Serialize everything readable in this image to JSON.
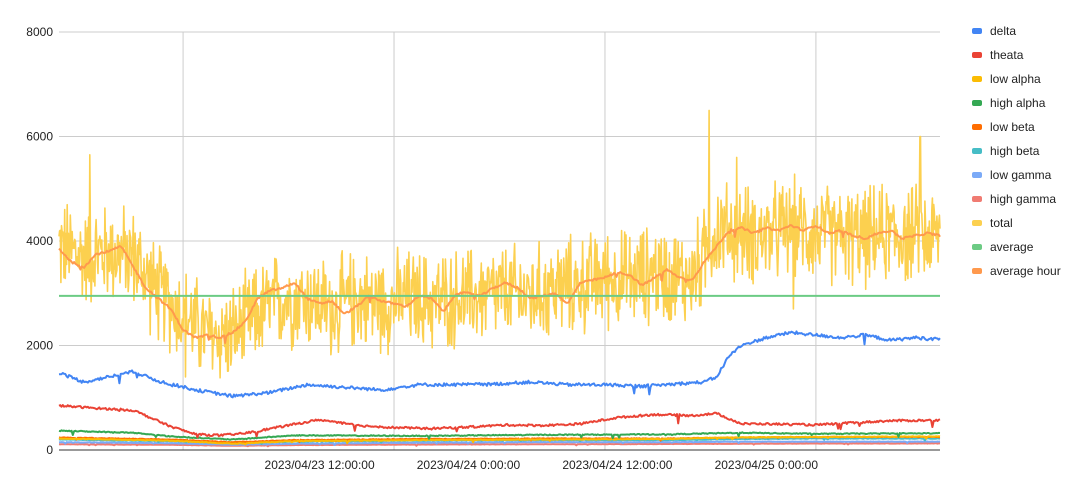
{
  "chart_data": {
    "type": "line",
    "title": "",
    "xlabel": "",
    "ylabel": "",
    "grid": true,
    "legend_position": "right",
    "ylim": [
      0,
      8000
    ],
    "y_ticks": [
      "0",
      "2000",
      "4000",
      "6000",
      "8000"
    ],
    "y_tick_values": [
      0,
      2000,
      4000,
      6000,
      8000
    ],
    "x_range_hours": [
      -9.0,
      62.0
    ],
    "x_axis_origin": "2023/04/23 0:00:00",
    "x_ticks": [
      {
        "label": "2023/04/23 12:00:00",
        "hour": 12
      },
      {
        "label": "2023/04/24 0:00:00",
        "hour": 24
      },
      {
        "label": "2023/04/24 12:00:00",
        "hour": 36
      },
      {
        "label": "2023/04/25 0:00:00",
        "hour": 48
      }
    ],
    "x_vertical_gridlines_hours": [
      1,
      18,
      35,
      52
    ],
    "series": [
      {
        "name": "delta",
        "color": "#4285f4",
        "kind": "trend",
        "points": [
          [
            -9,
            1480
          ],
          [
            -7,
            1300
          ],
          [
            -5,
            1400
          ],
          [
            -3,
            1500
          ],
          [
            -1,
            1320
          ],
          [
            2,
            1150
          ],
          [
            5,
            1030
          ],
          [
            8,
            1100
          ],
          [
            11,
            1250
          ],
          [
            14,
            1200
          ],
          [
            17,
            1150
          ],
          [
            20,
            1250
          ],
          [
            23,
            1250
          ],
          [
            26,
            1260
          ],
          [
            29,
            1300
          ],
          [
            32,
            1250
          ],
          [
            35,
            1250
          ],
          [
            38,
            1220
          ],
          [
            41,
            1270
          ],
          [
            43,
            1300
          ],
          [
            44,
            1400
          ],
          [
            45,
            1800
          ],
          [
            46,
            2000
          ],
          [
            48,
            2150
          ],
          [
            50,
            2250
          ],
          [
            52,
            2200
          ],
          [
            54,
            2150
          ],
          [
            56,
            2200
          ],
          [
            58,
            2100
          ],
          [
            60,
            2150
          ],
          [
            62,
            2120
          ]
        ],
        "noise": 60
      },
      {
        "name": "theata",
        "color": "#ea4335",
        "kind": "trend",
        "points": [
          [
            -9,
            850
          ],
          [
            -6,
            800
          ],
          [
            -3,
            760
          ],
          [
            0,
            450
          ],
          [
            2,
            300
          ],
          [
            4,
            280
          ],
          [
            6,
            320
          ],
          [
            9,
            450
          ],
          [
            12,
            580
          ],
          [
            15,
            470
          ],
          [
            18,
            430
          ],
          [
            21,
            410
          ],
          [
            24,
            440
          ],
          [
            27,
            480
          ],
          [
            30,
            470
          ],
          [
            33,
            500
          ],
          [
            36,
            620
          ],
          [
            39,
            680
          ],
          [
            42,
            660
          ],
          [
            44,
            700
          ],
          [
            46,
            500
          ],
          [
            48,
            500
          ],
          [
            52,
            480
          ],
          [
            55,
            520
          ],
          [
            58,
            560
          ],
          [
            62,
            570
          ]
        ],
        "noise": 40
      },
      {
        "name": "low alpha",
        "color": "#fbbc04",
        "kind": "trend",
        "points": [
          [
            -9,
            220
          ],
          [
            0,
            180
          ],
          [
            5,
            120
          ],
          [
            10,
            170
          ],
          [
            20,
            190
          ],
          [
            30,
            200
          ],
          [
            40,
            210
          ],
          [
            45,
            240
          ],
          [
            52,
            250
          ],
          [
            62,
            260
          ]
        ],
        "noise": 12
      },
      {
        "name": "high alpha",
        "color": "#34a853",
        "kind": "trend",
        "points": [
          [
            -9,
            370
          ],
          [
            -3,
            330
          ],
          [
            0,
            260
          ],
          [
            5,
            200
          ],
          [
            10,
            280
          ],
          [
            20,
            270
          ],
          [
            30,
            290
          ],
          [
            40,
            300
          ],
          [
            46,
            330
          ],
          [
            52,
            310
          ],
          [
            62,
            320
          ]
        ],
        "noise": 18
      },
      {
        "name": "low beta",
        "color": "#ff6d01",
        "kind": "trend",
        "points": [
          [
            -9,
            240
          ],
          [
            0,
            200
          ],
          [
            5,
            150
          ],
          [
            10,
            190
          ],
          [
            20,
            210
          ],
          [
            30,
            220
          ],
          [
            40,
            220
          ],
          [
            46,
            240
          ],
          [
            52,
            250
          ],
          [
            62,
            250
          ]
        ],
        "noise": 12
      },
      {
        "name": "high beta",
        "color": "#46bdc6",
        "kind": "trend",
        "points": [
          [
            -9,
            200
          ],
          [
            0,
            170
          ],
          [
            5,
            130
          ],
          [
            10,
            160
          ],
          [
            20,
            180
          ],
          [
            30,
            190
          ],
          [
            40,
            190
          ],
          [
            46,
            210
          ],
          [
            52,
            220
          ],
          [
            62,
            220
          ]
        ],
        "noise": 10
      },
      {
        "name": "low gamma",
        "color": "#7baaf7",
        "kind": "trend",
        "points": [
          [
            -9,
            150
          ],
          [
            0,
            130
          ],
          [
            5,
            100
          ],
          [
            10,
            120
          ],
          [
            20,
            140
          ],
          [
            30,
            150
          ],
          [
            40,
            150
          ],
          [
            46,
            160
          ],
          [
            52,
            160
          ],
          [
            62,
            160
          ]
        ],
        "noise": 8
      },
      {
        "name": "high gamma",
        "color": "#f07b72",
        "kind": "trend",
        "points": [
          [
            -9,
            110
          ],
          [
            0,
            100
          ],
          [
            5,
            80
          ],
          [
            10,
            95
          ],
          [
            20,
            105
          ],
          [
            30,
            110
          ],
          [
            40,
            115
          ],
          [
            46,
            120
          ],
          [
            52,
            125
          ],
          [
            62,
            125
          ]
        ],
        "noise": 6
      },
      {
        "name": "total",
        "color": "#fcd04f",
        "kind": "noisy",
        "points": [
          [
            -9,
            3900
          ],
          [
            -7,
            3700
          ],
          [
            -5,
            3800
          ],
          [
            -3,
            3700
          ],
          [
            -1,
            3000
          ],
          [
            1,
            2600
          ],
          [
            3,
            2200
          ],
          [
            5,
            2200
          ],
          [
            7,
            2600
          ],
          [
            9,
            2900
          ],
          [
            11,
            2900
          ],
          [
            13,
            2700
          ],
          [
            15,
            2900
          ],
          [
            17,
            2800
          ],
          [
            19,
            2900
          ],
          [
            21,
            2850
          ],
          [
            23,
            2900
          ],
          [
            25,
            2950
          ],
          [
            27,
            3000
          ],
          [
            29,
            2950
          ],
          [
            31,
            3100
          ],
          [
            33,
            3150
          ],
          [
            35,
            3300
          ],
          [
            37,
            3250
          ],
          [
            39,
            3400
          ],
          [
            41,
            3300
          ],
          [
            42,
            3300
          ],
          [
            43,
            3700
          ],
          [
            44,
            4200
          ],
          [
            46,
            4150
          ],
          [
            48,
            4100
          ],
          [
            50,
            4250
          ],
          [
            52,
            4150
          ],
          [
            54,
            4100
          ],
          [
            56,
            4050
          ],
          [
            58,
            4150
          ],
          [
            60,
            4100
          ],
          [
            62,
            4100
          ]
        ],
        "noise": 750,
        "peaks": [
          [
            43.4,
            6500
          ],
          [
            45.6,
            5600
          ],
          [
            60.4,
            6000
          ],
          [
            -6.5,
            5650
          ],
          [
            1.2,
            1400
          ],
          [
            50.2,
            2700
          ]
        ]
      },
      {
        "name": "average",
        "color": "#6ccb84",
        "kind": "flat",
        "value": 2950
      },
      {
        "name": "average hour",
        "color": "#ff994d",
        "kind": "trend",
        "points": [
          [
            -9,
            3850
          ],
          [
            -8,
            3600
          ],
          [
            -7,
            3500
          ],
          [
            -6,
            3750
          ],
          [
            -5,
            3800
          ],
          [
            -4,
            3900
          ],
          [
            -3,
            3500
          ],
          [
            -2,
            3100
          ],
          [
            -1,
            2900
          ],
          [
            0,
            2700
          ],
          [
            1,
            2300
          ],
          [
            2,
            2150
          ],
          [
            3,
            2200
          ],
          [
            4,
            2150
          ],
          [
            5,
            2250
          ],
          [
            6,
            2450
          ],
          [
            7,
            2900
          ],
          [
            8,
            3050
          ],
          [
            9,
            3100
          ],
          [
            10,
            3200
          ],
          [
            11,
            2900
          ],
          [
            12,
            2800
          ],
          [
            13,
            2850
          ],
          [
            14,
            2600
          ],
          [
            15,
            2750
          ],
          [
            16,
            2950
          ],
          [
            17,
            2850
          ],
          [
            18,
            2800
          ],
          [
            19,
            2750
          ],
          [
            20,
            2950
          ],
          [
            21,
            2900
          ],
          [
            22,
            2650
          ],
          [
            23,
            3000
          ],
          [
            24,
            3000
          ],
          [
            25,
            2950
          ],
          [
            26,
            3100
          ],
          [
            27,
            3200
          ],
          [
            28,
            3100
          ],
          [
            29,
            2900
          ],
          [
            30,
            2950
          ],
          [
            31,
            3000
          ],
          [
            32,
            2800
          ],
          [
            33,
            3200
          ],
          [
            34,
            3250
          ],
          [
            35,
            3300
          ],
          [
            36,
            3400
          ],
          [
            37,
            3350
          ],
          [
            38,
            3150
          ],
          [
            39,
            3300
          ],
          [
            40,
            3450
          ],
          [
            41,
            3300
          ],
          [
            42,
            3250
          ],
          [
            43,
            3600
          ],
          [
            44,
            3900
          ],
          [
            45,
            4200
          ],
          [
            46,
            4250
          ],
          [
            47,
            4150
          ],
          [
            48,
            4250
          ],
          [
            49,
            4200
          ],
          [
            50,
            4300
          ],
          [
            51,
            4200
          ],
          [
            52,
            4300
          ],
          [
            53,
            4150
          ],
          [
            54,
            4200
          ],
          [
            55,
            4100
          ],
          [
            56,
            4050
          ],
          [
            57,
            4150
          ],
          [
            58,
            4200
          ],
          [
            59,
            4050
          ],
          [
            60,
            4100
          ],
          [
            61,
            4150
          ],
          [
            62,
            4100
          ]
        ],
        "noise": 40
      }
    ]
  }
}
